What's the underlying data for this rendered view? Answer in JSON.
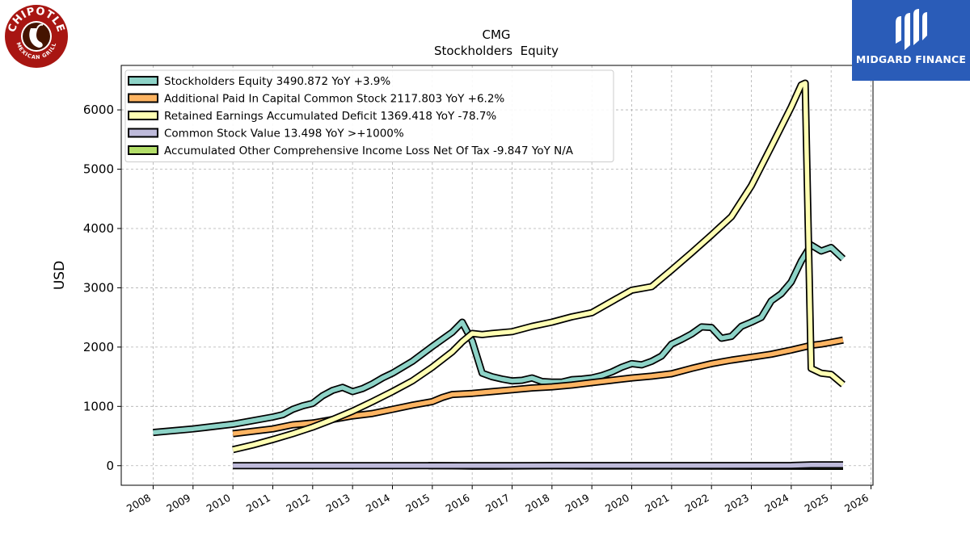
{
  "title": "CMG",
  "subtitle": "Stockholders  Equity",
  "brand_left": "CHIPOTLE MEXICAN GRILL",
  "brand_right": "MIDGARD FINANCE",
  "colors": {
    "equity": "#8dd3c7",
    "apic": "#fdb462",
    "retained": "#ffffb3",
    "common": "#bebada",
    "aoci": "#b3de69",
    "chipotle_red": "#a81612",
    "midgard_blue": "#2a5cb8"
  },
  "chart_data": {
    "type": "line",
    "title": "CMG",
    "subtitle": "Stockholders  Equity",
    "xlabel": "",
    "ylabel": "USD",
    "xlim": [
      2007.2,
      2026.05
    ],
    "ylim": [
      -330,
      6750
    ],
    "x_ticks": [
      "2008",
      "2009",
      "2010",
      "2011",
      "2012",
      "2013",
      "2014",
      "2015",
      "2016",
      "2017",
      "2018",
      "2019",
      "2020",
      "2021",
      "2022",
      "2023",
      "2024",
      "2025",
      "2026"
    ],
    "y_ticks": [
      0,
      1000,
      2000,
      3000,
      4000,
      5000,
      6000
    ],
    "grid": true,
    "legend_position": "top-left",
    "series": [
      {
        "key": "equity",
        "name": "Stockholders Equity  3490.872 YoY +3.9%",
        "points": [
          [
            2008.0,
            560
          ],
          [
            2009.0,
            620
          ],
          [
            2010.0,
            700
          ],
          [
            2011.0,
            820
          ],
          [
            2011.25,
            860
          ],
          [
            2011.5,
            950
          ],
          [
            2011.75,
            1010
          ],
          [
            2012.0,
            1050
          ],
          [
            2012.25,
            1180
          ],
          [
            2012.5,
            1270
          ],
          [
            2012.75,
            1320
          ],
          [
            2013.0,
            1250
          ],
          [
            2013.25,
            1300
          ],
          [
            2013.5,
            1380
          ],
          [
            2013.75,
            1480
          ],
          [
            2014.0,
            1560
          ],
          [
            2014.5,
            1760
          ],
          [
            2015.0,
            2010
          ],
          [
            2015.5,
            2250
          ],
          [
            2015.75,
            2420
          ],
          [
            2016.0,
            2100
          ],
          [
            2016.25,
            1560
          ],
          [
            2016.5,
            1500
          ],
          [
            2016.75,
            1460
          ],
          [
            2017.0,
            1430
          ],
          [
            2017.25,
            1440
          ],
          [
            2017.5,
            1480
          ],
          [
            2017.75,
            1420
          ],
          [
            2018.0,
            1410
          ],
          [
            2018.25,
            1410
          ],
          [
            2018.5,
            1450
          ],
          [
            2018.75,
            1460
          ],
          [
            2019.0,
            1480
          ],
          [
            2019.25,
            1520
          ],
          [
            2019.5,
            1580
          ],
          [
            2019.75,
            1660
          ],
          [
            2020.0,
            1720
          ],
          [
            2020.25,
            1700
          ],
          [
            2020.5,
            1760
          ],
          [
            2020.75,
            1850
          ],
          [
            2021.0,
            2050
          ],
          [
            2021.25,
            2130
          ],
          [
            2021.5,
            2220
          ],
          [
            2021.75,
            2340
          ],
          [
            2022.0,
            2330
          ],
          [
            2022.25,
            2150
          ],
          [
            2022.5,
            2180
          ],
          [
            2022.75,
            2350
          ],
          [
            2023.0,
            2420
          ],
          [
            2023.25,
            2500
          ],
          [
            2023.5,
            2780
          ],
          [
            2023.75,
            2900
          ],
          [
            2024.0,
            3100
          ],
          [
            2024.25,
            3450
          ],
          [
            2024.5,
            3720
          ],
          [
            2024.75,
            3620
          ],
          [
            2025.0,
            3680
          ],
          [
            2025.3,
            3491
          ]
        ]
      },
      {
        "key": "apic",
        "name": "Additional Paid In Capital Common Stock  2117.803 YoY +6.2%",
        "points": [
          [
            2010.0,
            540
          ],
          [
            2011.0,
            620
          ],
          [
            2011.5,
            690
          ],
          [
            2012.0,
            720
          ],
          [
            2012.5,
            780
          ],
          [
            2013.0,
            840
          ],
          [
            2013.5,
            880
          ],
          [
            2014.0,
            950
          ],
          [
            2014.5,
            1020
          ],
          [
            2015.0,
            1080
          ],
          [
            2015.25,
            1150
          ],
          [
            2015.5,
            1200
          ],
          [
            2016.0,
            1220
          ],
          [
            2016.5,
            1250
          ],
          [
            2017.0,
            1280
          ],
          [
            2017.5,
            1310
          ],
          [
            2018.0,
            1330
          ],
          [
            2018.5,
            1360
          ],
          [
            2019.0,
            1400
          ],
          [
            2019.5,
            1440
          ],
          [
            2020.0,
            1480
          ],
          [
            2020.5,
            1510
          ],
          [
            2021.0,
            1550
          ],
          [
            2021.5,
            1640
          ],
          [
            2022.0,
            1720
          ],
          [
            2022.5,
            1780
          ],
          [
            2023.0,
            1830
          ],
          [
            2023.5,
            1880
          ],
          [
            2024.0,
            1950
          ],
          [
            2024.5,
            2030
          ],
          [
            2024.75,
            2050
          ],
          [
            2025.0,
            2080
          ],
          [
            2025.3,
            2118
          ]
        ]
      },
      {
        "key": "retained",
        "name": "Retained Earnings Accumulated Deficit  1369.418 YoY -78.7%",
        "points": [
          [
            2010.0,
            270
          ],
          [
            2010.5,
            350
          ],
          [
            2011.0,
            440
          ],
          [
            2011.5,
            540
          ],
          [
            2012.0,
            650
          ],
          [
            2012.5,
            780
          ],
          [
            2013.0,
            920
          ],
          [
            2013.5,
            1080
          ],
          [
            2014.0,
            1250
          ],
          [
            2014.5,
            1430
          ],
          [
            2015.0,
            1660
          ],
          [
            2015.5,
            1920
          ],
          [
            2015.75,
            2090
          ],
          [
            2016.0,
            2230
          ],
          [
            2016.25,
            2210
          ],
          [
            2016.5,
            2230
          ],
          [
            2017.0,
            2260
          ],
          [
            2017.5,
            2350
          ],
          [
            2018.0,
            2420
          ],
          [
            2018.5,
            2510
          ],
          [
            2019.0,
            2580
          ],
          [
            2019.5,
            2770
          ],
          [
            2020.0,
            2960
          ],
          [
            2020.5,
            3020
          ],
          [
            2021.0,
            3300
          ],
          [
            2021.5,
            3590
          ],
          [
            2022.0,
            3890
          ],
          [
            2022.5,
            4200
          ],
          [
            2023.0,
            4720
          ],
          [
            2023.5,
            5380
          ],
          [
            2024.0,
            6050
          ],
          [
            2024.25,
            6420
          ],
          [
            2024.35,
            6450
          ],
          [
            2024.5,
            1640
          ],
          [
            2024.75,
            1560
          ],
          [
            2025.0,
            1540
          ],
          [
            2025.3,
            1369
          ]
        ]
      },
      {
        "key": "common",
        "name": "Common Stock Value  13.498 YoY >+1000%",
        "points": [
          [
            2010.0,
            0
          ],
          [
            2011.0,
            0
          ],
          [
            2012.0,
            0
          ],
          [
            2013.0,
            0
          ],
          [
            2014.0,
            0
          ],
          [
            2014.9,
            0
          ],
          [
            2016.0,
            0
          ],
          [
            2018.0,
            2
          ],
          [
            2020.0,
            2
          ],
          [
            2022.0,
            2
          ],
          [
            2024.0,
            4
          ],
          [
            2024.5,
            13
          ],
          [
            2025.3,
            13.5
          ]
        ]
      },
      {
        "key": "aoci",
        "name": "Accumulated Other Comprehensive Income Loss Net Of Tax  -9.847 YoY N/A",
        "points": [
          [
            2014.9,
            0
          ],
          [
            2015.5,
            -2
          ],
          [
            2016.0,
            -6
          ],
          [
            2016.5,
            -6
          ],
          [
            2017.0,
            -4
          ],
          [
            2018.0,
            -2
          ],
          [
            2019.0,
            -4
          ],
          [
            2020.0,
            -4
          ],
          [
            2021.0,
            -4
          ],
          [
            2022.0,
            -6
          ],
          [
            2023.0,
            -8
          ],
          [
            2024.0,
            -8
          ],
          [
            2025.3,
            -9.8
          ]
        ]
      }
    ]
  }
}
